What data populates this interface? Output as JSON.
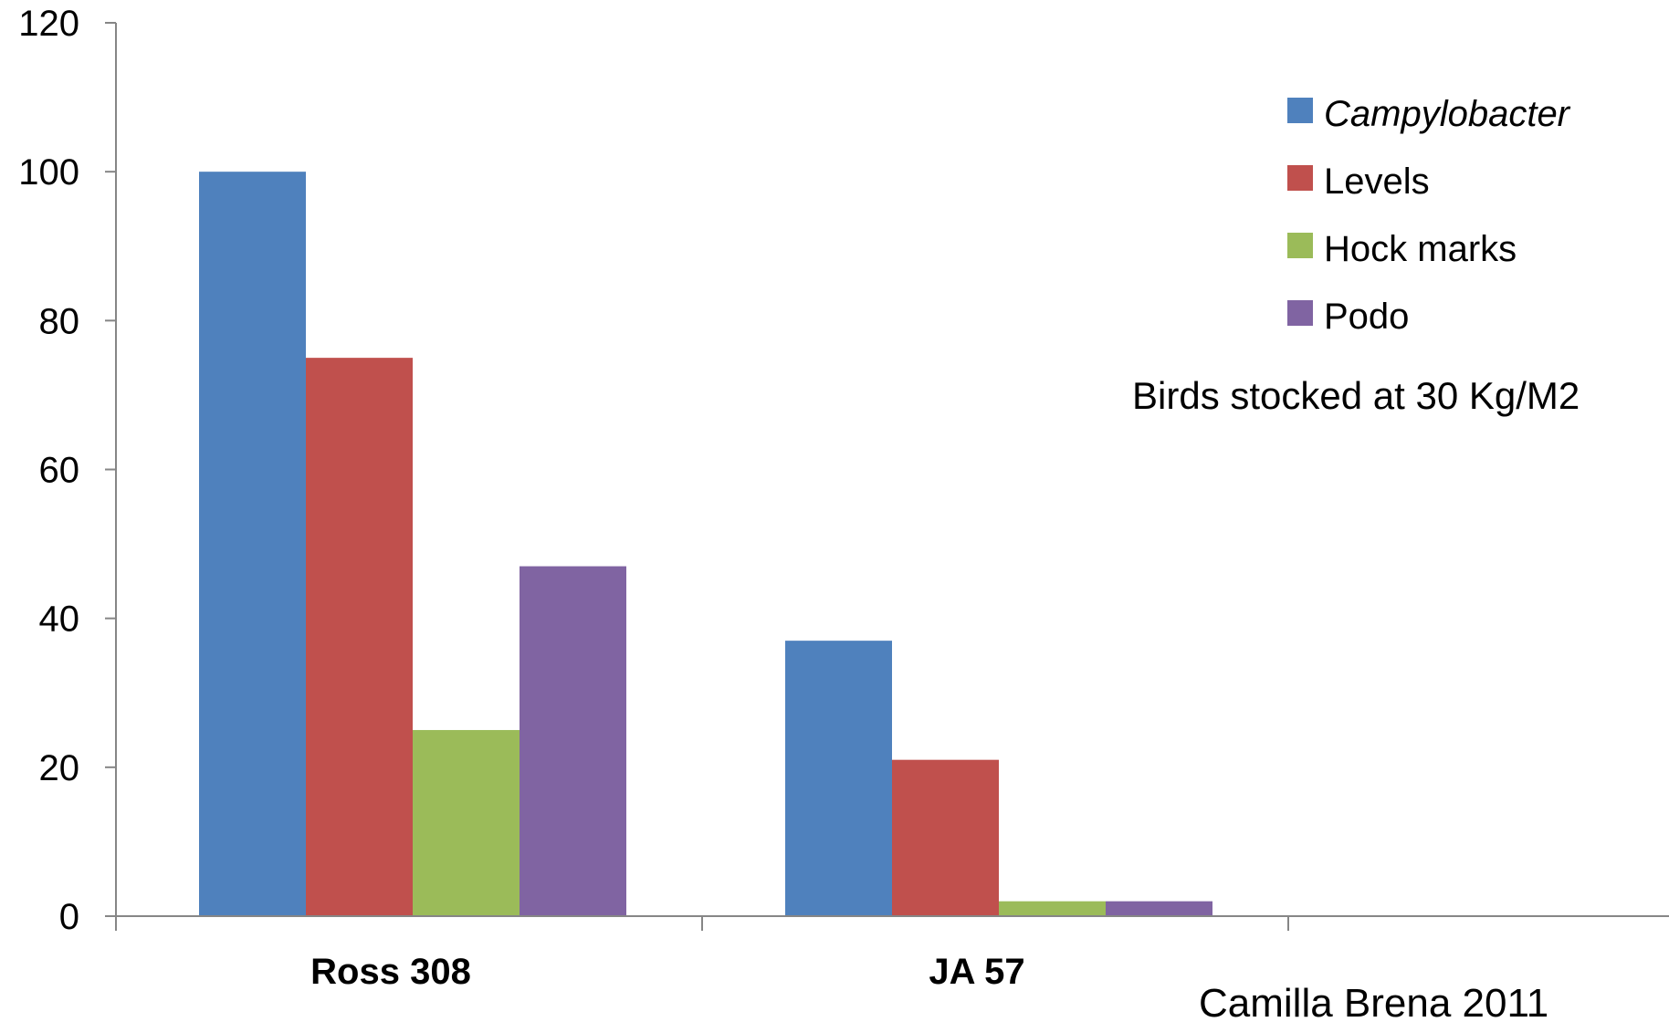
{
  "chart_data": {
    "type": "bar",
    "categories": [
      "Ross 308",
      "JA 57"
    ],
    "series": [
      {
        "name": "Campylobacter",
        "values": [
          100,
          37
        ],
        "color": "#4F81BD",
        "italic": true
      },
      {
        "name": "Levels",
        "values": [
          75,
          21
        ],
        "color": "#C0504D",
        "italic": false
      },
      {
        "name": "Hock marks",
        "values": [
          25,
          2
        ],
        "color": "#9BBB59",
        "italic": false
      },
      {
        "name": "Podo",
        "values": [
          47,
          2
        ],
        "color": "#8064A2",
        "italic": false
      }
    ],
    "ylim": [
      0,
      120
    ],
    "yticks": [
      "0",
      "20",
      "40",
      "60",
      "80",
      "100",
      "120"
    ],
    "grid": false,
    "legend_position": "top-right",
    "annotation": "Birds stocked at 30 Kg/M2",
    "credit": "Camilla Brena 2011"
  }
}
